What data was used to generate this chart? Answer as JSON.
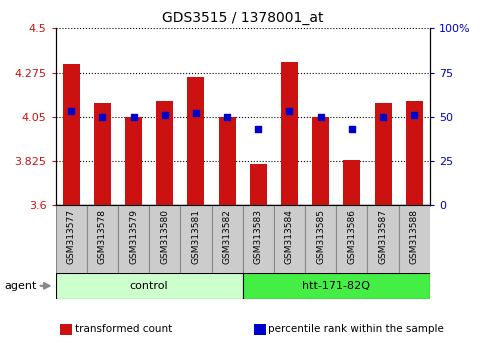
{
  "title": "GDS3515 / 1378001_at",
  "samples": [
    "GSM313577",
    "GSM313578",
    "GSM313579",
    "GSM313580",
    "GSM313581",
    "GSM313582",
    "GSM313583",
    "GSM313584",
    "GSM313585",
    "GSM313586",
    "GSM313587",
    "GSM313588"
  ],
  "bar_values": [
    4.32,
    4.12,
    4.05,
    4.13,
    4.25,
    4.05,
    3.81,
    4.33,
    4.05,
    3.83,
    4.12,
    4.13
  ],
  "percentile_values": [
    4.08,
    4.05,
    4.05,
    4.06,
    4.07,
    4.05,
    3.99,
    4.08,
    4.05,
    3.99,
    4.05,
    4.06
  ],
  "bar_bottom": 3.6,
  "ymin": 3.6,
  "ymax": 4.5,
  "yticks": [
    3.6,
    3.825,
    4.05,
    4.275,
    4.5
  ],
  "ytick_labels": [
    "3.6",
    "3.825",
    "4.05",
    "4.275",
    "4.5"
  ],
  "right_yticks": [
    0,
    25,
    50,
    75,
    100
  ],
  "right_ytick_labels": [
    "0",
    "25",
    "50",
    "75",
    "100%"
  ],
  "bar_color": "#cc1111",
  "percentile_color": "#0000cc",
  "groups": [
    {
      "label": "control",
      "start": 0,
      "end": 6,
      "color": "#ccffcc"
    },
    {
      "label": "htt-171-82Q",
      "start": 6,
      "end": 12,
      "color": "#44ee44"
    }
  ],
  "agent_label": "agent",
  "legend_items": [
    {
      "label": "transformed count",
      "color": "#cc1111"
    },
    {
      "label": "percentile rank within the sample",
      "color": "#0000cc"
    }
  ],
  "grid_color": "#000000",
  "tick_label_color_left": "#cc1111",
  "tick_label_color_right": "#0000cc",
  "bar_width": 0.55,
  "sample_box_color": "#cccccc",
  "sample_box_edge": "#888888"
}
